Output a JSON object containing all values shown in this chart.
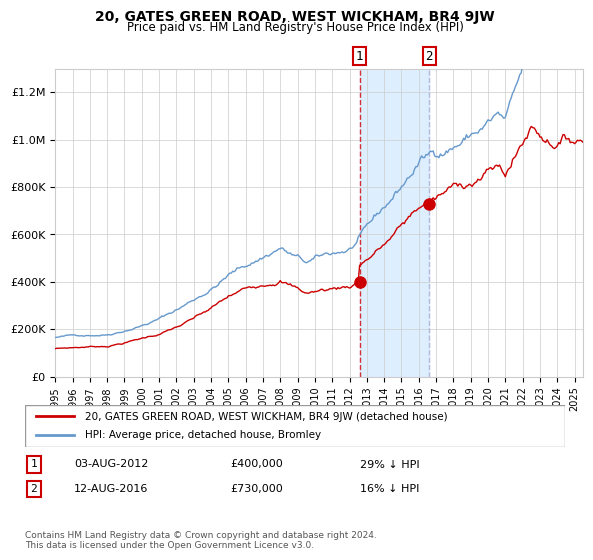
{
  "title": "20, GATES GREEN ROAD, WEST WICKHAM, BR4 9JW",
  "subtitle": "Price paid vs. HM Land Registry's House Price Index (HPI)",
  "legend_line1": "20, GATES GREEN ROAD, WEST WICKHAM, BR4 9JW (detached house)",
  "legend_line2": "HPI: Average price, detached house, Bromley",
  "note1_label": "1",
  "note1_date": "03-AUG-2012",
  "note1_price": "£400,000",
  "note1_hpi": "29% ↓ HPI",
  "note2_label": "2",
  "note2_date": "12-AUG-2016",
  "note2_price": "£730,000",
  "note2_hpi": "16% ↓ HPI",
  "copyright": "Contains HM Land Registry data © Crown copyright and database right 2024.\nThis data is licensed under the Open Government Licence v3.0.",
  "red_color": "#cc0000",
  "blue_color": "#6699cc",
  "shading_color": "#ddeeff",
  "sale1_x": 2012.58,
  "sale1_y": 400000,
  "sale2_x": 2016.61,
  "sale2_y": 730000,
  "ylim": [
    0,
    1300000
  ],
  "xlim_start": 1995.0,
  "xlim_end": 2025.5
}
